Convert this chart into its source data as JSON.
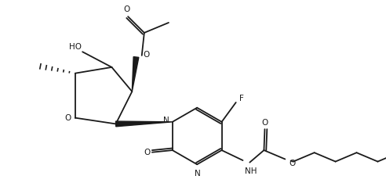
{
  "bg_color": "#ffffff",
  "line_color": "#1a1a1a",
  "line_width": 1.3,
  "font_size": 7.5,
  "fig_width": 4.92,
  "fig_height": 2.34,
  "dpi": 100,
  "xlim": [
    0,
    9.5
  ],
  "ylim": [
    0,
    4.4
  ]
}
